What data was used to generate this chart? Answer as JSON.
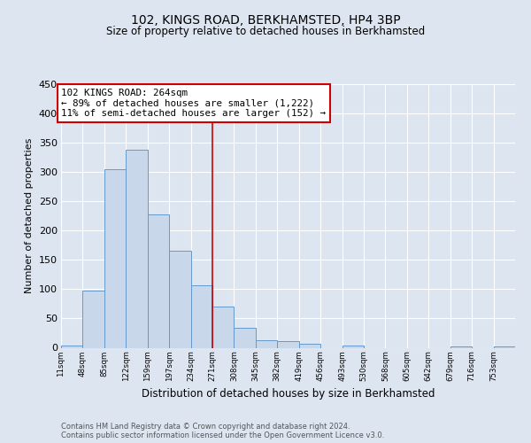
{
  "title": "102, KINGS ROAD, BERKHAMSTED, HP4 3BP",
  "subtitle": "Size of property relative to detached houses in Berkhamsted",
  "xlabel": "Distribution of detached houses by size in Berkhamsted",
  "ylabel": "Number of detached properties",
  "bar_color": "#c8d8ea",
  "bar_edge_color": "#6699cc",
  "background_color": "#dde6f0",
  "grid_color": "#ffffff",
  "tick_labels": [
    "11sqm",
    "48sqm",
    "85sqm",
    "122sqm",
    "159sqm",
    "197sqm",
    "234sqm",
    "271sqm",
    "308sqm",
    "345sqm",
    "382sqm",
    "419sqm",
    "456sqm",
    "493sqm",
    "530sqm",
    "568sqm",
    "605sqm",
    "642sqm",
    "679sqm",
    "716sqm",
    "753sqm"
  ],
  "bar_values": [
    4,
    98,
    305,
    338,
    228,
    165,
    106,
    70,
    34,
    13,
    12,
    7,
    0,
    4,
    0,
    0,
    0,
    0,
    3,
    0,
    2
  ],
  "n_bars": 21,
  "vline_bar_index": 7,
  "vline_color": "#cc0000",
  "annotation_line1": "102 KINGS ROAD: 264sqm",
  "annotation_line2": "← 89% of detached houses are smaller (1,222)",
  "annotation_line3": "11% of semi-detached houses are larger (152) →",
  "annotation_box_edge": "#cc0000",
  "annotation_bg": "#ffffff",
  "ylim": [
    0,
    450
  ],
  "yticks": [
    0,
    50,
    100,
    150,
    200,
    250,
    300,
    350,
    400,
    450
  ],
  "footer_line1": "Contains HM Land Registry data © Crown copyright and database right 2024.",
  "footer_line2": "Contains public sector information licensed under the Open Government Licence v3.0."
}
